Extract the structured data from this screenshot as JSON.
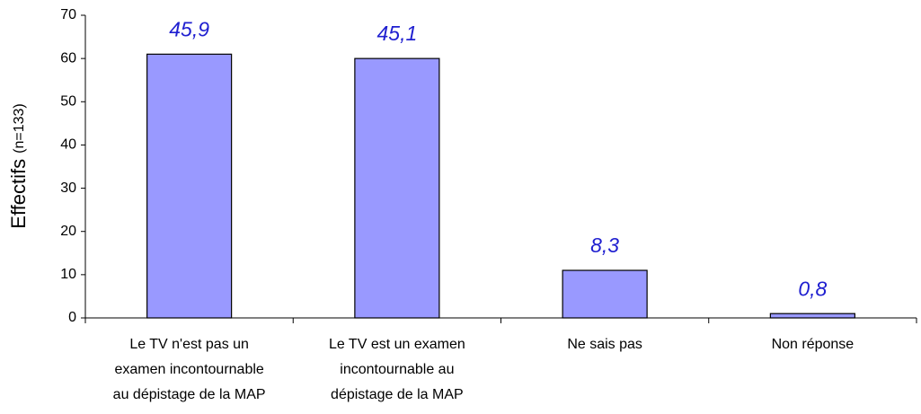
{
  "chart_data": {
    "type": "bar",
    "ylabel": "Effectifs",
    "ylabel_note": "(n=133)",
    "categories": [
      "Le TV n'est pas un\nexamen incontournable\nau dépistage de la MAP",
      "Le TV est un examen\nincontournable au\ndépistage de la MAP",
      "Ne sais pas",
      "Non réponse"
    ],
    "values": [
      61,
      60,
      11,
      1
    ],
    "percent_labels": [
      "45,9",
      "45,1",
      "8,3",
      "0,8"
    ],
    "color": "#9999ff",
    "ylim": [
      0,
      70
    ],
    "yticks": [
      0,
      10,
      20,
      30,
      40,
      50,
      60,
      70
    ],
    "grid": false
  }
}
